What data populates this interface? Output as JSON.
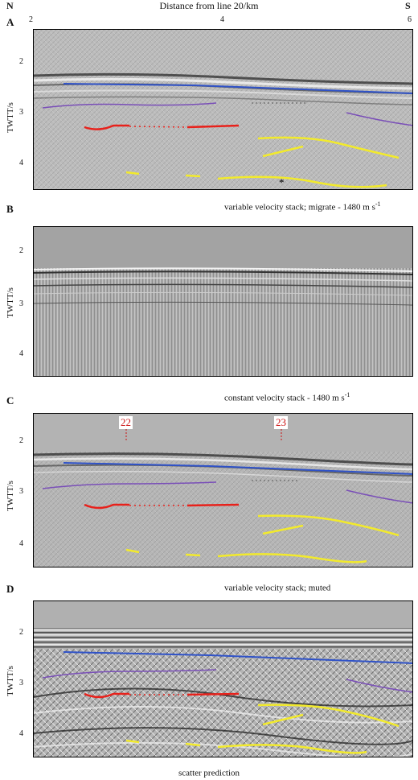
{
  "header": {
    "left_letter": "N",
    "right_letter": "S",
    "axis_title": "Distance from line 20/km",
    "x_ticks": [
      "2",
      "4",
      "6"
    ]
  },
  "panels": [
    {
      "letter": "A",
      "ylabel": "TWTT/s",
      "y_ticks": [
        "2",
        "3",
        "4"
      ],
      "caption_main": "variable velocity stack; migrate - 1480 m s",
      "caption_sup": "-1",
      "star": "*",
      "background": "#b9b9b9"
    },
    {
      "letter": "B",
      "ylabel": "TWTT/s",
      "y_ticks": [
        "2",
        "3",
        "4"
      ],
      "caption_main": "constant velocity stack - 1480 m s",
      "caption_sup": "-1",
      "background": "#a9a9a9"
    },
    {
      "letter": "C",
      "ylabel": "TWTT/s",
      "y_ticks": [
        "2",
        "3",
        "4"
      ],
      "caption_main": "variable velocity stack; muted",
      "caption_sup": "",
      "well_labels": [
        "22",
        "23"
      ],
      "background": "#b5b5b5"
    },
    {
      "letter": "D",
      "ylabel": "TWTT/s",
      "y_ticks": [
        "2",
        "3",
        "4"
      ],
      "caption_main": "scatter prediction",
      "caption_sup": "",
      "background": "#b0b0b0"
    }
  ],
  "colors": {
    "blue_horizon": "#2f52c8",
    "purple_horizon": "#7a4fb8",
    "red_horizon": "#e8211b",
    "yellow_horizon": "#f2ea2c",
    "seismic_gray": "#b8b8b8"
  }
}
